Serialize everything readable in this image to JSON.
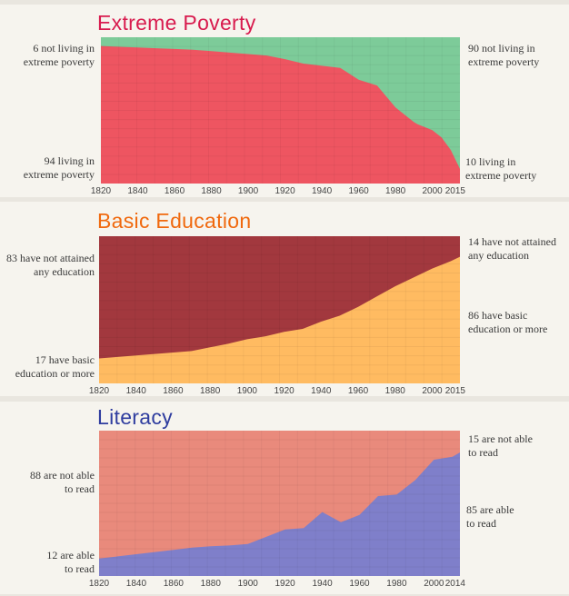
{
  "colors": {
    "poverty_top": "#7dcb99",
    "poverty_bottom": "#ee5561",
    "poverty_title": "#d81b4e",
    "education_top": "#a2383e",
    "education_bottom": "#ffbb61",
    "education_title": "#f0690e",
    "literacy_top": "#e98a7c",
    "literacy_bottom": "#7f7fca",
    "literacy_title": "#2f3d9f"
  },
  "chart_data": [
    {
      "type": "area",
      "title": "Extreme Poverty",
      "x": [
        1820,
        1830,
        1840,
        1850,
        1860,
        1870,
        1880,
        1890,
        1900,
        1910,
        1920,
        1930,
        1940,
        1950,
        1960,
        1970,
        1980,
        1990,
        1992,
        2000,
        2005,
        2010,
        2015
      ],
      "series": [
        {
          "values": [
            94,
            93.5,
            93,
            92.5,
            92,
            91.5,
            90.5,
            89.5,
            88.5,
            87.5,
            85,
            82,
            80.5,
            79,
            71,
            67,
            52,
            42,
            40.5,
            36.5,
            31.5,
            23,
            10
          ]
        },
        {
          "values": [
            6,
            6.5,
            7,
            7.5,
            8,
            8.5,
            9.5,
            10.5,
            11.5,
            12.5,
            15,
            18,
            19.5,
            21,
            29,
            33,
            48,
            58,
            59.5,
            63.5,
            68.5,
            77,
            90
          ]
        }
      ],
      "xticks": [
        1820,
        1840,
        1860,
        1880,
        1900,
        1920,
        1940,
        1960,
        1980,
        2000,
        2015
      ],
      "ylim": [
        0,
        100
      ],
      "annotations": {
        "left_top": [
          "6 not living in",
          "extreme poverty"
        ],
        "left_bottom": [
          "94 living in",
          "extreme poverty"
        ],
        "right_top": [
          "90 not living in",
          "extreme poverty"
        ],
        "right_bottom": [
          "10 living in",
          "extreme poverty"
        ]
      }
    },
    {
      "type": "area",
      "title": "Basic Education",
      "x": [
        1820,
        1830,
        1840,
        1850,
        1860,
        1870,
        1880,
        1890,
        1900,
        1910,
        1920,
        1930,
        1940,
        1950,
        1960,
        1970,
        1980,
        1990,
        2000,
        2010,
        2015
      ],
      "series": [
        {
          "values": [
            17,
            18,
            19,
            20,
            21,
            22,
            24.5,
            27,
            30,
            32,
            35,
            37,
            42,
            46,
            52,
            59,
            66,
            72,
            78,
            83,
            86
          ]
        },
        {
          "values": [
            83,
            82,
            81,
            80,
            79,
            78,
            75.5,
            73,
            70,
            68,
            65,
            63,
            58,
            54,
            48,
            41,
            34,
            28,
            22,
            17,
            14
          ]
        }
      ],
      "xticks": [
        1820,
        1840,
        1860,
        1880,
        1900,
        1920,
        1940,
        1960,
        1980,
        2000,
        2015
      ],
      "ylim": [
        0,
        100
      ],
      "annotations": {
        "left_top": [
          "83 have not attained",
          "any education"
        ],
        "left_bottom": [
          "17 have basic",
          "education or more"
        ],
        "right_top": [
          "14 have not attained",
          "any education"
        ],
        "right_bottom": [
          "86 have basic",
          "education or more"
        ]
      }
    },
    {
      "type": "area",
      "title": "Literacy",
      "x": [
        1820,
        1830,
        1840,
        1850,
        1860,
        1870,
        1880,
        1890,
        1900,
        1910,
        1920,
        1930,
        1940,
        1950,
        1960,
        1970,
        1980,
        1990,
        2000,
        2010,
        2014
      ],
      "series": [
        {
          "values": [
            12,
            13.5,
            15,
            16.5,
            18,
            19.5,
            20.5,
            21,
            22,
            27,
            32,
            33,
            44,
            37,
            42,
            55,
            56,
            66,
            80,
            82,
            85
          ]
        },
        {
          "values": [
            88,
            86.5,
            85,
            83.5,
            82,
            80.5,
            79.5,
            79,
            78,
            73,
            68,
            67,
            56,
            63,
            58,
            45,
            44,
            34,
            20,
            18,
            15
          ]
        }
      ],
      "xticks": [
        1820,
        1840,
        1860,
        1880,
        1900,
        1920,
        1940,
        1960,
        1980,
        2000,
        2014
      ],
      "ylim": [
        0,
        100
      ],
      "annotations": {
        "left_top": [
          "88 are not able",
          "to read"
        ],
        "left_bottom": [
          "12 are able",
          "to read"
        ],
        "right_top": [
          "15 are not able",
          "to read"
        ],
        "right_bottom": [
          "85 are able",
          "to read"
        ]
      }
    }
  ]
}
